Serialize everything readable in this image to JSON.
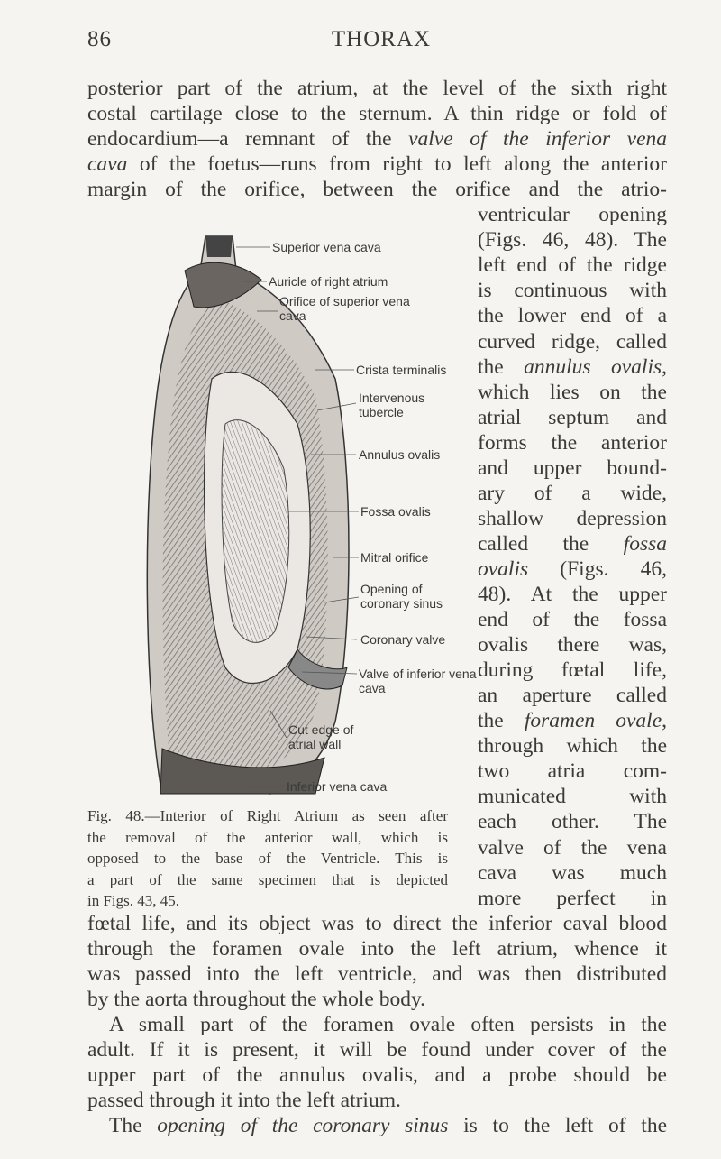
{
  "header": {
    "page_number": "86",
    "title": "THORAX"
  },
  "body": {
    "top_lines": [
      [
        "posterior part of the atrium, at the level of the sixth right"
      ],
      [
        "costal cartilage close to the sternum. A thin ridge or fold of"
      ],
      [
        "endocardium—a remnant of the ",
        {
          "italic": "valve of the inferior vena"
        }
      ],
      [
        {
          "italic": "cava"
        },
        " of the foetus—runs from right to left along the anterior"
      ],
      [
        "margin of the orifice, between the orifice and the atrio-"
      ]
    ],
    "side_lines": [
      [
        "ventricular opening"
      ],
      [
        "(Figs. 46, 48). The"
      ],
      [
        "left end of the ridge"
      ],
      [
        "is continuous with"
      ],
      [
        "the lower end of a"
      ],
      [
        "curved ridge, called"
      ],
      [
        "the ",
        {
          "italic": "annulus ovalis"
        },
        ","
      ],
      [
        "which lies on the"
      ],
      [
        "atrial septum and"
      ],
      [
        "forms the anterior"
      ],
      [
        "and upper bound-"
      ],
      [
        "ary of a wide,"
      ],
      [
        "shallow depression"
      ],
      [
        "called the ",
        {
          "italic": "fossa"
        }
      ],
      [
        {
          "italic": "ovalis"
        },
        " (Figs. 46,"
      ],
      [
        "48). At the upper"
      ],
      [
        "end of the fossa"
      ],
      [
        "ovalis there was,"
      ],
      [
        "during fœtal life,"
      ],
      [
        "an aperture called"
      ],
      [
        "the ",
        {
          "italic": "foramen ovale"
        },
        ","
      ],
      [
        "through which the"
      ],
      [
        "two atria com-"
      ],
      [
        "municated with"
      ],
      [
        "each other. The"
      ],
      [
        "valve of the vena"
      ],
      [
        "cava was much"
      ],
      [
        "more perfect in"
      ]
    ],
    "bottom_lines": [
      [
        "fœtal life, and its object was to direct the inferior caval blood"
      ],
      [
        "through the foramen ovale into the left atrium, whence it"
      ],
      [
        "was passed into the left ventricle, and was then distributed"
      ],
      [
        "by the aorta throughout the whole body."
      ],
      [
        "A small part of the foramen ovale often persists in the"
      ],
      [
        "adult. If it is present, it will be found under cover of the"
      ],
      [
        "upper part of the annulus ovalis, and a probe should be"
      ],
      [
        "passed through it into the left atrium."
      ],
      [
        "The ",
        {
          "italic": "opening of the coronary sinus"
        },
        " is to the left of the"
      ]
    ]
  },
  "figure": {
    "labels": [
      "Superior vena cava",
      "Auricle of right atrium",
      "Orifice of superior vena cava",
      "Crista terminalis",
      "Intervenous tubercle",
      "Annulus ovalis",
      "Fossa ovalis",
      "Mitral orifice",
      "Opening of coronary sinus",
      "Coronary valve",
      "Valve of inferior vena cava",
      "Cut edge of atrial wall",
      "Inferior vena cava"
    ],
    "caption": [
      "Fig. 48.—Interior of Right Atrium as seen after",
      "the removal of the anterior wall, which is",
      "opposed to the base of the Ventricle. This is",
      "a part of the same specimen that is depicted",
      "in Figs. 43, 45."
    ]
  }
}
